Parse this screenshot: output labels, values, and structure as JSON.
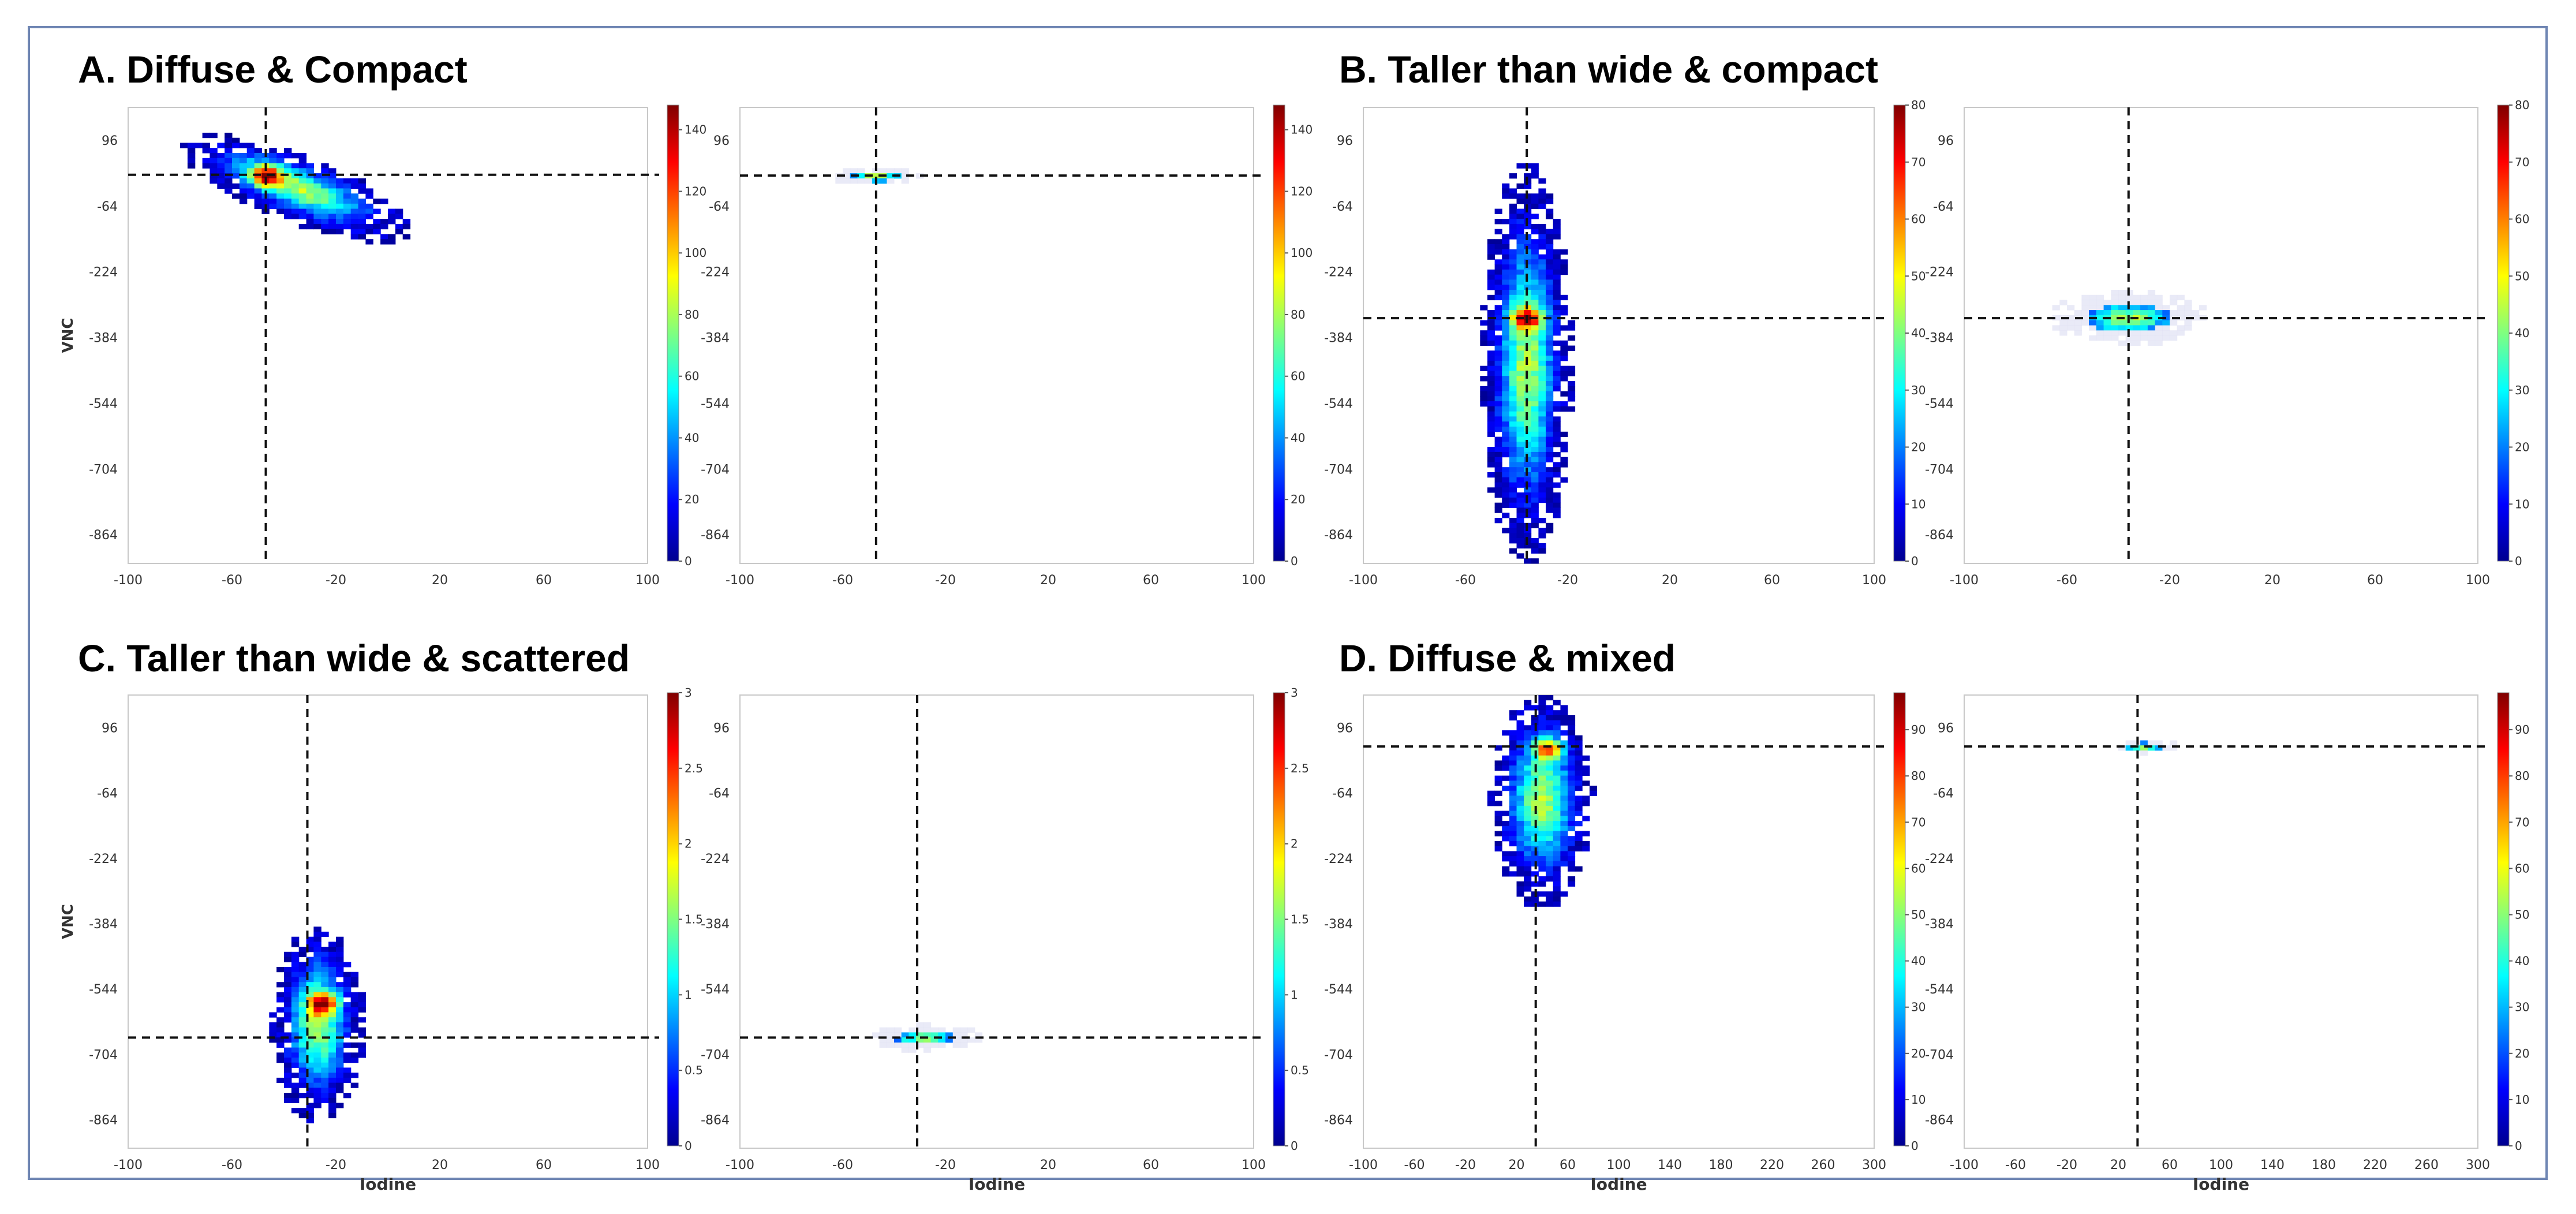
{
  "chart_data": [
    {
      "type": "heatmap",
      "panel": "A",
      "title": "A. Diffuse & Compact",
      "xlabel": "",
      "ylabel": "VNC",
      "xlim": [
        -100,
        100
      ],
      "ylim": [
        -934,
        176
      ],
      "xticks": [
        -100,
        -60,
        -20,
        20,
        60,
        100
      ],
      "yticks": [
        96,
        -64,
        -224,
        -384,
        -544,
        -704,
        -864
      ],
      "colorbar_ticks": [
        0,
        20,
        40,
        60,
        80,
        100,
        120,
        140
      ],
      "colorbar_max": 148,
      "left": {
        "crosshair": {
          "x": -47,
          "y": 12
        },
        "cluster": {
          "center_x": -35,
          "center_y": -20,
          "spread_x": 20,
          "spread_y": 40,
          "tilt": -0.55,
          "peak_x": -47,
          "peak_y": 10,
          "peak": 148
        }
      },
      "right": {
        "crosshair": {
          "x": -47,
          "y": 10
        },
        "cluster": {
          "center_x": -47,
          "center_y": 8,
          "spread_x": 8,
          "spread_y": 10,
          "peak": 148,
          "ghost": true
        }
      }
    },
    {
      "type": "heatmap",
      "panel": "B",
      "title": "B. Taller than wide & compact",
      "xlabel": "",
      "ylabel": "",
      "xlim": [
        -100,
        100
      ],
      "ylim": [
        -934,
        176
      ],
      "xticks": [
        -100,
        -60,
        -20,
        20,
        60,
        100
      ],
      "yticks": [
        96,
        -64,
        -224,
        -384,
        -544,
        -704,
        -864
      ],
      "colorbar_ticks": [
        0,
        10,
        20,
        30,
        40,
        50,
        60,
        70,
        80
      ],
      "colorbar_max": 80,
      "left": {
        "crosshair": {
          "x": -36,
          "y": -337
        },
        "cluster": {
          "center_x": -36,
          "center_y": -450,
          "spread_x": 8,
          "spread_y": 220,
          "peak_x": -36,
          "peak_y": -337,
          "peak": 80
        }
      },
      "right": {
        "crosshair": {
          "x": -36,
          "y": -337
        },
        "cluster": {
          "center_x": -36,
          "center_y": -337,
          "spread_x": 14,
          "spread_y": 30,
          "peak": 80,
          "ghost": true
        }
      }
    },
    {
      "type": "heatmap",
      "panel": "C",
      "title": "C. Taller than wide & scattered",
      "xlabel": "Iodine",
      "ylabel": "VNC",
      "xlim": [
        -100,
        100
      ],
      "ylim": [
        -934,
        176
      ],
      "xticks": [
        -100,
        -60,
        -20,
        20,
        60,
        100
      ],
      "yticks": [
        96,
        -64,
        -224,
        -384,
        -544,
        -704,
        -864
      ],
      "colorbar_ticks": [
        0,
        0.5,
        1,
        1.5,
        2,
        2.5,
        3
      ],
      "colorbar_max": 3,
      "left": {
        "crosshair": {
          "x": -31,
          "y": -663
        },
        "cluster": {
          "center_x": -27,
          "center_y": -630,
          "spread_x": 8,
          "spread_y": 110,
          "peak_x": -25,
          "peak_y": -580,
          "peak": 3
        }
      },
      "right": {
        "crosshair": {
          "x": -31,
          "y": -663
        },
        "cluster": {
          "center_x": -28,
          "center_y": -663,
          "spread_x": 10,
          "spread_y": 15,
          "peak": 3,
          "ghost": true
        }
      }
    },
    {
      "type": "heatmap",
      "panel": "D",
      "title": "D. Diffuse & mixed",
      "xlabel": "Iodine",
      "ylabel": "",
      "xlim": [
        -100,
        300
      ],
      "ylim": [
        -934,
        176
      ],
      "xticks": [
        -100,
        -60,
        -20,
        20,
        60,
        100,
        140,
        180,
        220,
        260,
        300
      ],
      "yticks": [
        96,
        -64,
        -224,
        -384,
        -544,
        -704,
        -864
      ],
      "colorbar_ticks": [
        0,
        10,
        20,
        30,
        40,
        50,
        60,
        70,
        80,
        90
      ],
      "colorbar_max": 98,
      "left": {
        "crosshair": {
          "x": 35,
          "y": 50
        },
        "cluster": {
          "center_x": 40,
          "center_y": -80,
          "spread_x": 18,
          "spread_y": 120,
          "peak_x": 45,
          "peak_y": 45,
          "peak": 98
        }
      },
      "right": {
        "crosshair": {
          "x": 35,
          "y": 50
        },
        "cluster": {
          "center_x": 40,
          "center_y": 50,
          "spread_x": 12,
          "spread_y": 8,
          "peak": 98,
          "ghost": true
        }
      }
    }
  ]
}
